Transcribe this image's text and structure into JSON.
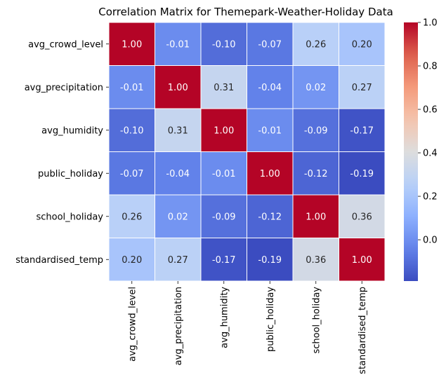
{
  "chart_data": {
    "type": "heatmap",
    "title": "Correlation Matrix for Themepark-Weather-Holiday Data",
    "rows": [
      "avg_crowd_level",
      "avg_precipitation",
      "avg_humidity",
      "public_holiday",
      "school_holiday",
      "standardised_temp"
    ],
    "columns": [
      "avg_crowd_level",
      "avg_precipitation",
      "avg_humidity",
      "public_holiday",
      "school_holiday",
      "standardised_temp"
    ],
    "values": [
      [
        1.0,
        -0.01,
        -0.1,
        -0.07,
        0.26,
        0.2
      ],
      [
        -0.01,
        1.0,
        0.31,
        -0.04,
        0.02,
        0.27
      ],
      [
        -0.1,
        0.31,
        1.0,
        -0.01,
        -0.09,
        -0.17
      ],
      [
        -0.07,
        -0.04,
        -0.01,
        1.0,
        -0.12,
        -0.19
      ],
      [
        0.26,
        0.02,
        -0.09,
        -0.12,
        1.0,
        0.36
      ],
      [
        0.2,
        0.27,
        -0.17,
        -0.19,
        0.36,
        1.0
      ]
    ],
    "annotation_format": "0.00",
    "colormap": "coolwarm",
    "colorbar": {
      "range": [
        -0.19,
        1.0
      ],
      "ticks": [
        "1.0",
        "0.8",
        "0.6",
        "0.4",
        "0.2",
        "0.0"
      ],
      "tick_values": [
        1.0,
        0.8,
        0.6,
        0.4,
        0.2,
        0.0
      ]
    },
    "grid_line_color": "#ffffff",
    "xlabel": "",
    "ylabel": ""
  }
}
